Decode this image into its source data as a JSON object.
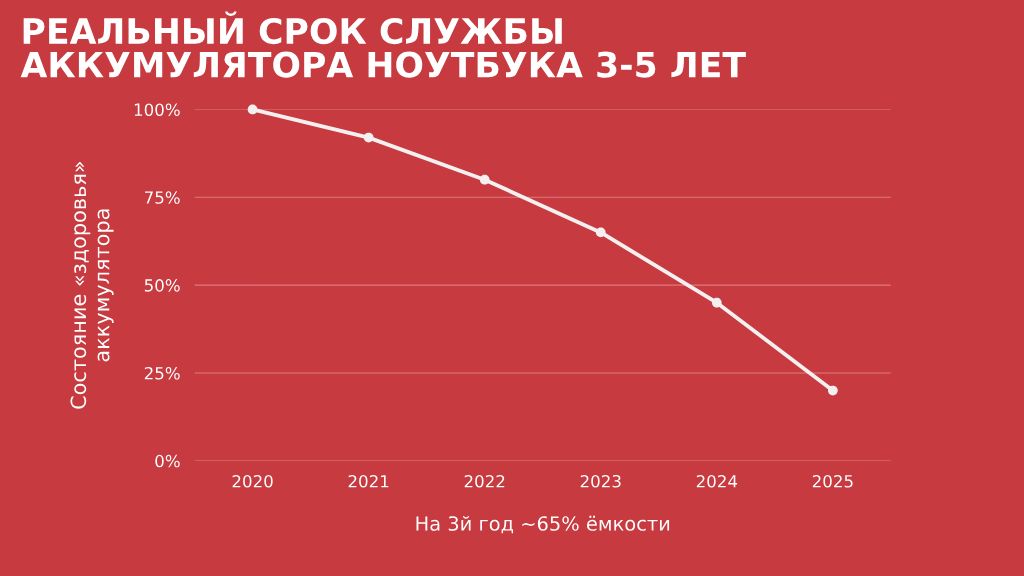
{
  "chart_data": {
    "type": "line",
    "title": "РЕАЛЬНЫЙ СРОК СЛУЖБЫ\nАККУМУЛЯТОРА НОУТБУКА 3-5 ЛЕТ",
    "xlabel": "На 3й год ~65% ёмкости",
    "ylabel": "Состояние «здоровья»\nаккумулятора",
    "categories": [
      "2020",
      "2021",
      "2022",
      "2023",
      "2024",
      "2025"
    ],
    "series": [
      {
        "color": "#f5f0f0",
        "values": [
          100,
          92,
          80,
          65,
          45,
          20
        ]
      }
    ],
    "ylim": [
      0,
      100
    ],
    "yticks": [
      {
        "value": 0,
        "label": "0%"
      },
      {
        "value": 25,
        "label": "25%"
      },
      {
        "value": 50,
        "label": "50%"
      },
      {
        "value": 75,
        "label": "75%"
      },
      {
        "value": 100,
        "label": "100%"
      }
    ],
    "grid": "y",
    "marker": "circle",
    "line_style": "solid",
    "legend": false
  }
}
